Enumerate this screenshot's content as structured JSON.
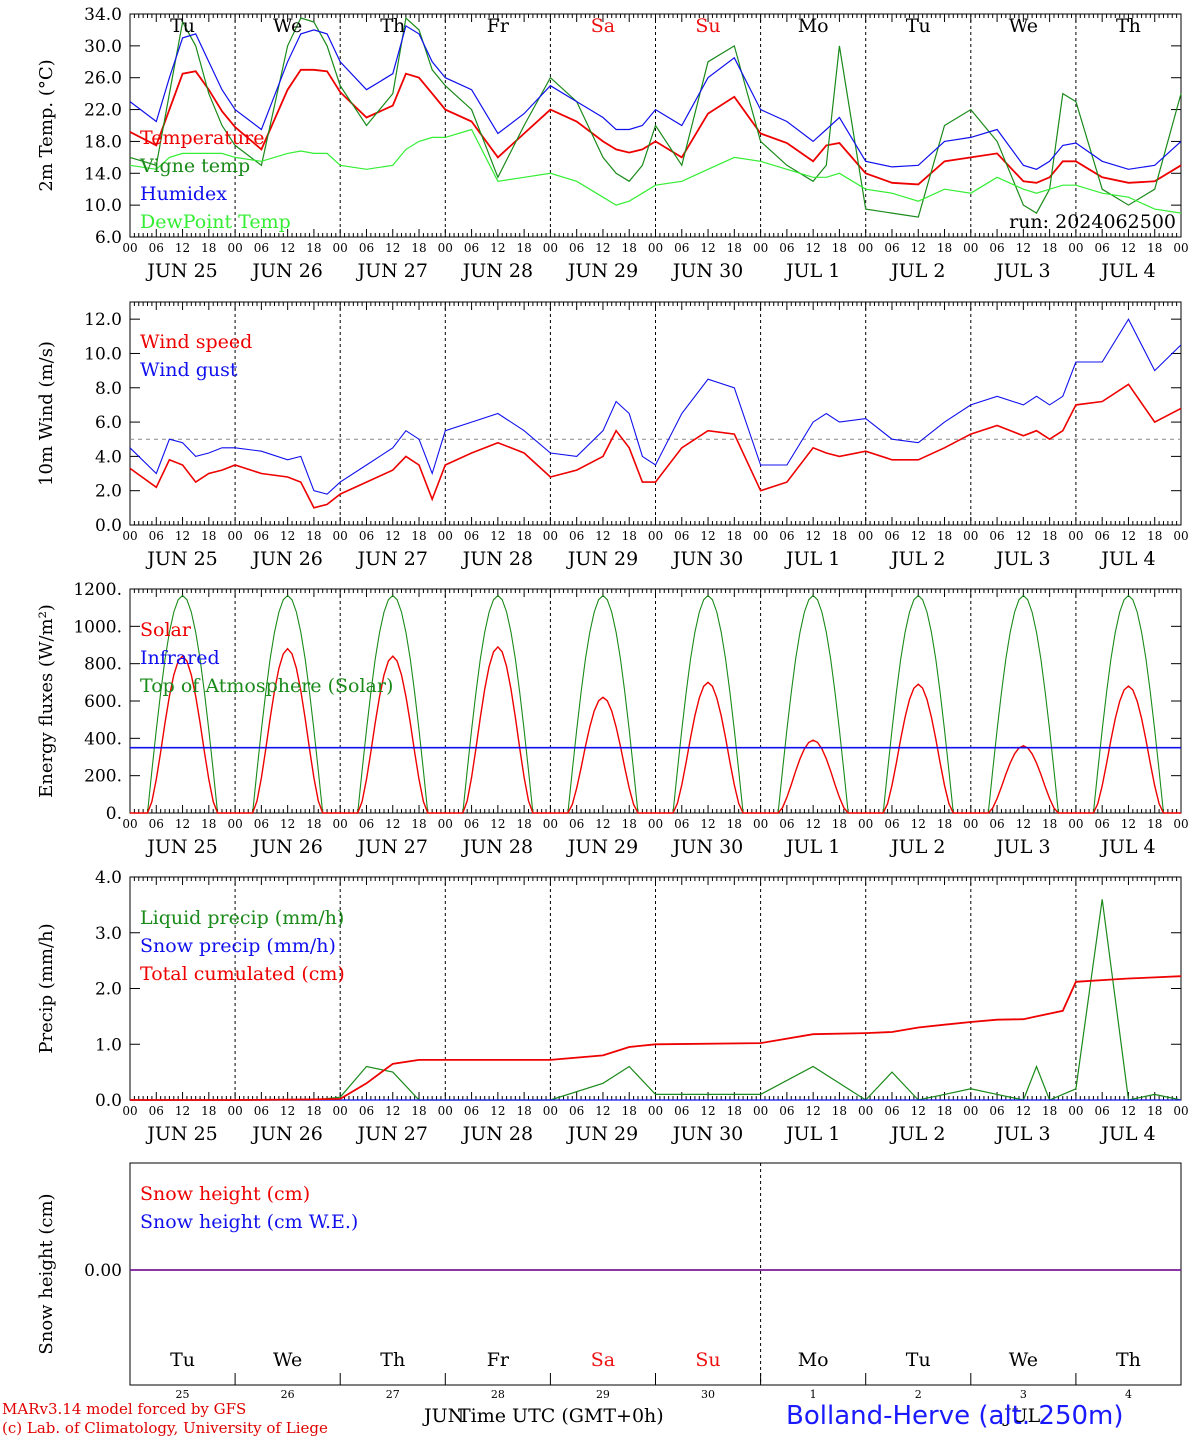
{
  "colors": {
    "red": "#ee0000",
    "green": "#1a8a1a",
    "lightgreen": "#33ee33",
    "blue": "#1010ee",
    "purple": "#7a1a9a",
    "axis": "#000000",
    "weekend": "#ee1111"
  },
  "days": {
    "dates": [
      "JUN 25",
      "JUN 26",
      "JUN 27",
      "JUN 28",
      "JUN 29",
      "JUN 30",
      "JUL  1",
      "JUL  2",
      "JUL  3",
      "JUL  4"
    ],
    "weekdays": [
      "Tu",
      "We",
      "Th",
      "Fr",
      "Sa",
      "Su",
      "Mo",
      "Tu",
      "We",
      "Th"
    ],
    "weekend_flags": [
      false,
      false,
      false,
      false,
      true,
      true,
      false,
      false,
      false,
      false
    ],
    "daynums": [
      "25",
      "26",
      "27",
      "28",
      "29",
      "30",
      "1",
      "2",
      "3",
      "4"
    ],
    "hour_ticks": [
      "00",
      "06",
      "12",
      "18"
    ],
    "final_tick": "00"
  },
  "footer": {
    "credit_line1": "MARv3.14 model forced by GFS",
    "credit_line2": "(c) Lab. of Climatology, University of Liege",
    "xlabel": "Time UTC (GMT+0h)",
    "month_jun": "JUN",
    "month_jul": "JUL",
    "station": "Bolland-Herve (alt. 250m)"
  },
  "chart_data": [
    {
      "type": "line",
      "id": "temp",
      "ylabel": "2m Temp. (°C)",
      "ylim": [
        6.0,
        34.0
      ],
      "yticks": [
        "6.0",
        "10.0",
        "14.0",
        "18.0",
        "22.0",
        "26.0",
        "30.0",
        "34.0"
      ],
      "annotation": "run: 2024062500",
      "x": [
        0,
        6,
        9,
        12,
        15,
        18,
        21,
        24,
        30,
        36,
        39,
        42,
        45,
        48,
        54,
        60,
        63,
        66,
        69,
        72,
        78,
        84,
        90,
        96,
        102,
        108,
        111,
        114,
        117,
        120,
        126,
        132,
        138,
        144,
        150,
        156,
        159,
        162,
        168,
        174,
        180,
        186,
        192,
        198,
        204,
        207,
        210,
        213,
        216,
        222,
        228,
        234,
        240
      ],
      "series": [
        {
          "name": "Temperature",
          "color": "red",
          "values": [
            19.2,
            17.5,
            22.0,
            26.5,
            26.8,
            24.5,
            21.8,
            19.8,
            17.0,
            24.5,
            27.0,
            27.0,
            26.8,
            24.2,
            21.0,
            22.5,
            26.5,
            26.0,
            24.0,
            22.0,
            20.5,
            16.0,
            19.0,
            22.0,
            20.5,
            18.0,
            17.0,
            16.6,
            17.0,
            18.0,
            16.0,
            21.5,
            23.6,
            19.0,
            17.8,
            15.5,
            17.5,
            17.8,
            14.0,
            12.8,
            12.6,
            15.5,
            16.0,
            16.5,
            13.0,
            12.8,
            13.5,
            15.5,
            15.5,
            13.5,
            12.8,
            13.0,
            15.0
          ]
        },
        {
          "name": "Vigne temp",
          "color": "green",
          "values": [
            16.0,
            15.0,
            24.0,
            33.0,
            30.0,
            24.0,
            20.0,
            17.5,
            15.0,
            30.0,
            33.5,
            33.0,
            30.0,
            25.0,
            20.0,
            24.0,
            33.5,
            32.0,
            27.0,
            25.0,
            22.0,
            13.5,
            20.0,
            26.0,
            23.0,
            16.0,
            14.0,
            13.0,
            15.0,
            20.0,
            15.0,
            28.0,
            30.0,
            18.0,
            15.0,
            13.0,
            15.0,
            30.0,
            9.5,
            9.0,
            8.5,
            20.0,
            22.0,
            18.0,
            10.0,
            9.0,
            12.0,
            24.0,
            23.0,
            12.0,
            10.0,
            12.0,
            24.0
          ]
        },
        {
          "name": "Humidex",
          "color": "blue",
          "values": [
            23.0,
            20.5,
            26.0,
            31.0,
            31.5,
            28.0,
            24.5,
            22.0,
            19.5,
            28.0,
            31.5,
            32.0,
            31.5,
            28.0,
            24.5,
            26.5,
            32.5,
            31.5,
            28.0,
            26.0,
            24.5,
            19.0,
            21.5,
            25.0,
            23.0,
            21.0,
            19.5,
            19.5,
            20.0,
            22.0,
            20.0,
            26.0,
            28.5,
            22.0,
            20.5,
            18.0,
            19.5,
            21.0,
            15.5,
            14.8,
            15.0,
            18.0,
            18.5,
            19.5,
            15.0,
            14.5,
            15.5,
            17.5,
            17.8,
            15.5,
            14.5,
            15.0,
            18.0
          ]
        },
        {
          "name": "DewPoint Temp",
          "color": "lightgreen",
          "values": [
            15.0,
            14.5,
            16.0,
            16.5,
            16.5,
            16.5,
            16.5,
            16.0,
            15.5,
            16.5,
            16.8,
            16.5,
            16.5,
            15.0,
            14.5,
            15.0,
            17.0,
            18.0,
            18.5,
            18.5,
            19.5,
            13.0,
            13.5,
            14.0,
            13.0,
            11.0,
            10.0,
            10.5,
            11.5,
            12.5,
            13.0,
            14.5,
            16.0,
            15.5,
            14.5,
            13.5,
            13.5,
            14.0,
            12.0,
            11.5,
            10.5,
            12.0,
            11.5,
            13.5,
            12.0,
            11.5,
            12.0,
            12.5,
            12.5,
            11.5,
            11.0,
            9.5,
            9.0
          ]
        }
      ]
    },
    {
      "type": "line",
      "id": "wind",
      "ylabel": "10m Wind (m/s)",
      "ylim": [
        0.0,
        13.0
      ],
      "yticks": [
        "0.0",
        "2.0",
        "4.0",
        "6.0",
        "8.0",
        "10.0",
        "12.0"
      ],
      "reference_line": 5.0,
      "x": [
        0,
        6,
        9,
        12,
        15,
        18,
        21,
        24,
        30,
        36,
        39,
        42,
        45,
        48,
        54,
        60,
        63,
        66,
        69,
        72,
        78,
        84,
        90,
        96,
        102,
        108,
        111,
        114,
        117,
        120,
        126,
        132,
        138,
        144,
        150,
        156,
        159,
        162,
        168,
        174,
        180,
        186,
        192,
        198,
        204,
        207,
        210,
        213,
        216,
        222,
        228,
        234,
        240
      ],
      "series": [
        {
          "name": "Wind speed",
          "color": "red",
          "values": [
            3.3,
            2.2,
            3.8,
            3.5,
            2.5,
            3.0,
            3.2,
            3.5,
            3.0,
            2.8,
            2.5,
            1.0,
            1.2,
            1.8,
            2.5,
            3.2,
            4.0,
            3.5,
            1.5,
            3.5,
            4.2,
            4.8,
            4.2,
            2.8,
            3.2,
            4.0,
            5.5,
            4.5,
            2.5,
            2.5,
            4.5,
            5.5,
            5.3,
            2.0,
            2.5,
            4.5,
            4.2,
            4.0,
            4.3,
            3.8,
            3.8,
            4.5,
            5.3,
            5.8,
            5.2,
            5.5,
            5.0,
            5.5,
            7.0,
            7.2,
            8.2,
            6.0,
            6.8
          ]
        },
        {
          "name": "Wind gust",
          "color": "blue",
          "values": [
            4.5,
            3.0,
            5.0,
            4.8,
            4.0,
            4.2,
            4.5,
            4.5,
            4.3,
            3.8,
            4.0,
            2.0,
            1.8,
            2.5,
            3.5,
            4.5,
            5.5,
            5.0,
            3.0,
            5.5,
            6.0,
            6.5,
            5.5,
            4.2,
            4.0,
            5.5,
            7.2,
            6.5,
            4.0,
            3.5,
            6.5,
            8.5,
            8.0,
            3.5,
            3.5,
            6.0,
            6.5,
            6.0,
            6.2,
            5.0,
            4.8,
            6.0,
            7.0,
            7.5,
            7.0,
            7.5,
            7.0,
            7.5,
            9.5,
            9.5,
            12.0,
            9.0,
            10.5
          ]
        }
      ]
    },
    {
      "type": "line",
      "id": "energy",
      "ylabel": "Energy fluxes (W/m²)",
      "ylim": [
        0,
        1200
      ],
      "yticks": [
        "0.",
        "200.",
        "400.",
        "600.",
        "800.",
        "1000.",
        "1200."
      ],
      "daily_series": [
        {
          "name": "Solar",
          "color": "red",
          "daily_peak": [
            840,
            880,
            840,
            890,
            620,
            700,
            390,
            690,
            360,
            680
          ]
        },
        {
          "name": "Infrared",
          "color": "blue",
          "flat_value": 350
        },
        {
          "name": "Top of Atmosphere (Solar)",
          "color": "green",
          "daily_peak": [
            1165,
            1165,
            1165,
            1165,
            1165,
            1165,
            1165,
            1165,
            1165,
            1165
          ]
        }
      ]
    },
    {
      "type": "line",
      "id": "precip",
      "ylabel": "Precip (mm/h)",
      "ylim": [
        0.0,
        4.0
      ],
      "yticks": [
        "0.0",
        "1.0",
        "2.0",
        "3.0",
        "4.0"
      ],
      "x": [
        0,
        24,
        42,
        48,
        54,
        60,
        66,
        72,
        96,
        108,
        114,
        120,
        144,
        156,
        168,
        174,
        180,
        186,
        192,
        198,
        204,
        207,
        210,
        213,
        216,
        222,
        228,
        234,
        240
      ],
      "series": [
        {
          "name": "Liquid precip (mm/h)",
          "color": "green",
          "values": [
            0,
            0,
            0,
            0.05,
            0.6,
            0.5,
            0.0,
            0,
            0,
            0.3,
            0.6,
            0.1,
            0.1,
            0.6,
            0.0,
            0.5,
            0.0,
            0.1,
            0.2,
            0.1,
            0.0,
            0.6,
            0.0,
            0.1,
            0.2,
            3.6,
            0.0,
            0.1,
            0.0
          ]
        },
        {
          "name": "Snow precip (mm/h)",
          "color": "blue",
          "values": [
            0,
            0,
            0,
            0,
            0,
            0,
            0,
            0,
            0,
            0,
            0,
            0,
            0,
            0,
            0,
            0,
            0,
            0,
            0,
            0,
            0,
            0,
            0,
            0,
            0,
            0,
            0,
            0,
            0
          ]
        },
        {
          "name": "Total cumulated (cm)",
          "color": "red",
          "values": [
            0,
            0,
            0.01,
            0.02,
            0.3,
            0.65,
            0.72,
            0.72,
            0.72,
            0.8,
            0.95,
            1.0,
            1.02,
            1.18,
            1.2,
            1.22,
            1.3,
            1.35,
            1.4,
            1.44,
            1.45,
            1.5,
            1.55,
            1.6,
            2.12,
            2.15,
            2.18,
            2.2,
            2.22
          ]
        }
      ]
    },
    {
      "type": "line",
      "id": "snow",
      "ylabel": "Snow height (cm)",
      "yticks": [
        "0.00"
      ],
      "series": [
        {
          "name": "Snow height (cm)",
          "color": "red",
          "values": [
            0.0,
            0.0
          ]
        },
        {
          "name": "Snow height (cm W.E.)",
          "color": "blue",
          "values": [
            0.0,
            0.0
          ]
        }
      ]
    }
  ]
}
